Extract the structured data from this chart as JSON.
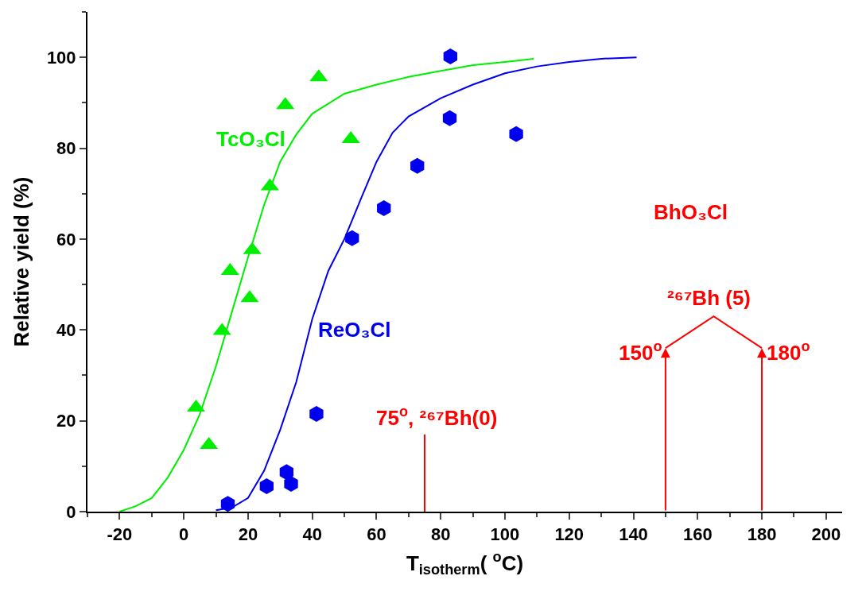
{
  "chart_data": {
    "type": "scatter",
    "xlabel": "T$_{isotherm}$( $^{o}$C)",
    "ylabel": "Relative yield (%)",
    "xlim": [
      -30,
      205
    ],
    "xticks": [
      -20,
      0,
      20,
      40,
      60,
      80,
      100,
      120,
      140,
      160,
      180,
      200
    ],
    "ylim": [
      0,
      110
    ],
    "yticks": [
      0,
      20,
      40,
      60,
      80,
      100
    ],
    "legend": false,
    "series": [
      {
        "name": "TcO₃Cl",
        "marker": "triangle",
        "color": "#00ee00",
        "x": [
          3.8,
          7.8,
          11.9,
          14.4,
          20.5,
          21.3,
          26.8,
          31.6,
          42,
          52
        ],
        "values": [
          22.9,
          14.7,
          39.8,
          53,
          47,
          57.6,
          71.6,
          89.5,
          95.6,
          82
        ]
      },
      {
        "name": "ReO₃Cl",
        "color": "#0000ee",
        "x": [
          13.7,
          25.8,
          32,
          33.4,
          41.3,
          52.4,
          62.3,
          72.7,
          82.8,
          83,
          103.5
        ],
        "values": [
          1.7,
          5.6,
          8.7,
          6.1,
          21.5,
          60.2,
          66.8,
          76.1,
          86.6,
          100.2,
          83.1
        ]
      },
      {
        "type": "line",
        "marker": "none",
        "color": "#00ee00",
        "x": [
          -20,
          -15,
          -10,
          -5,
          0,
          5,
          10,
          15,
          20,
          25,
          30,
          35,
          40,
          50,
          60,
          70,
          80,
          90,
          100,
          109
        ],
        "values": [
          0,
          1.2,
          3,
          7.5,
          13.6,
          21.5,
          32,
          44,
          56,
          67.5,
          77,
          83,
          87.6,
          92,
          94,
          95.7,
          97,
          98.3,
          99,
          99.7
        ]
      },
      {
        "type": "line",
        "marker": "none",
        "color": "#0000ee",
        "x": [
          10,
          15,
          20,
          25,
          30,
          35,
          40,
          45,
          50,
          55,
          60,
          65,
          70,
          80,
          90,
          100,
          110,
          120,
          130,
          141
        ],
        "values": [
          0.3,
          0.9,
          3,
          9,
          18,
          28.5,
          42.4,
          53,
          60,
          68.6,
          77,
          83.4,
          87,
          91,
          94,
          96.5,
          98,
          99,
          99.7,
          100
        ]
      },
      {
        "type": "line",
        "marker": "none",
        "color": "#ff0000",
        "x": [
          150,
          165,
          180
        ],
        "values": [
          36,
          43,
          36
        ]
      },
      {
        "type": "line",
        "marker": "none",
        "color": "#ff0000",
        "x": [
          75,
          75
        ],
        "values": [
          0,
          17
        ]
      }
    ],
    "annotations": [
      {
        "text": "75$^{o}$, ²⁶⁷Bh(0)",
        "x": 75,
        "y": 17
      },
      {
        "text": "150$^{o}$",
        "x": 150,
        "y": 36
      },
      {
        "text": "180$^{o}$",
        "x": 180,
        "y": 36
      },
      {
        "text": "²⁶⁷Bh (5)",
        "x": 165,
        "y": 43
      },
      "BhO₃Cl"
    ]
  }
}
